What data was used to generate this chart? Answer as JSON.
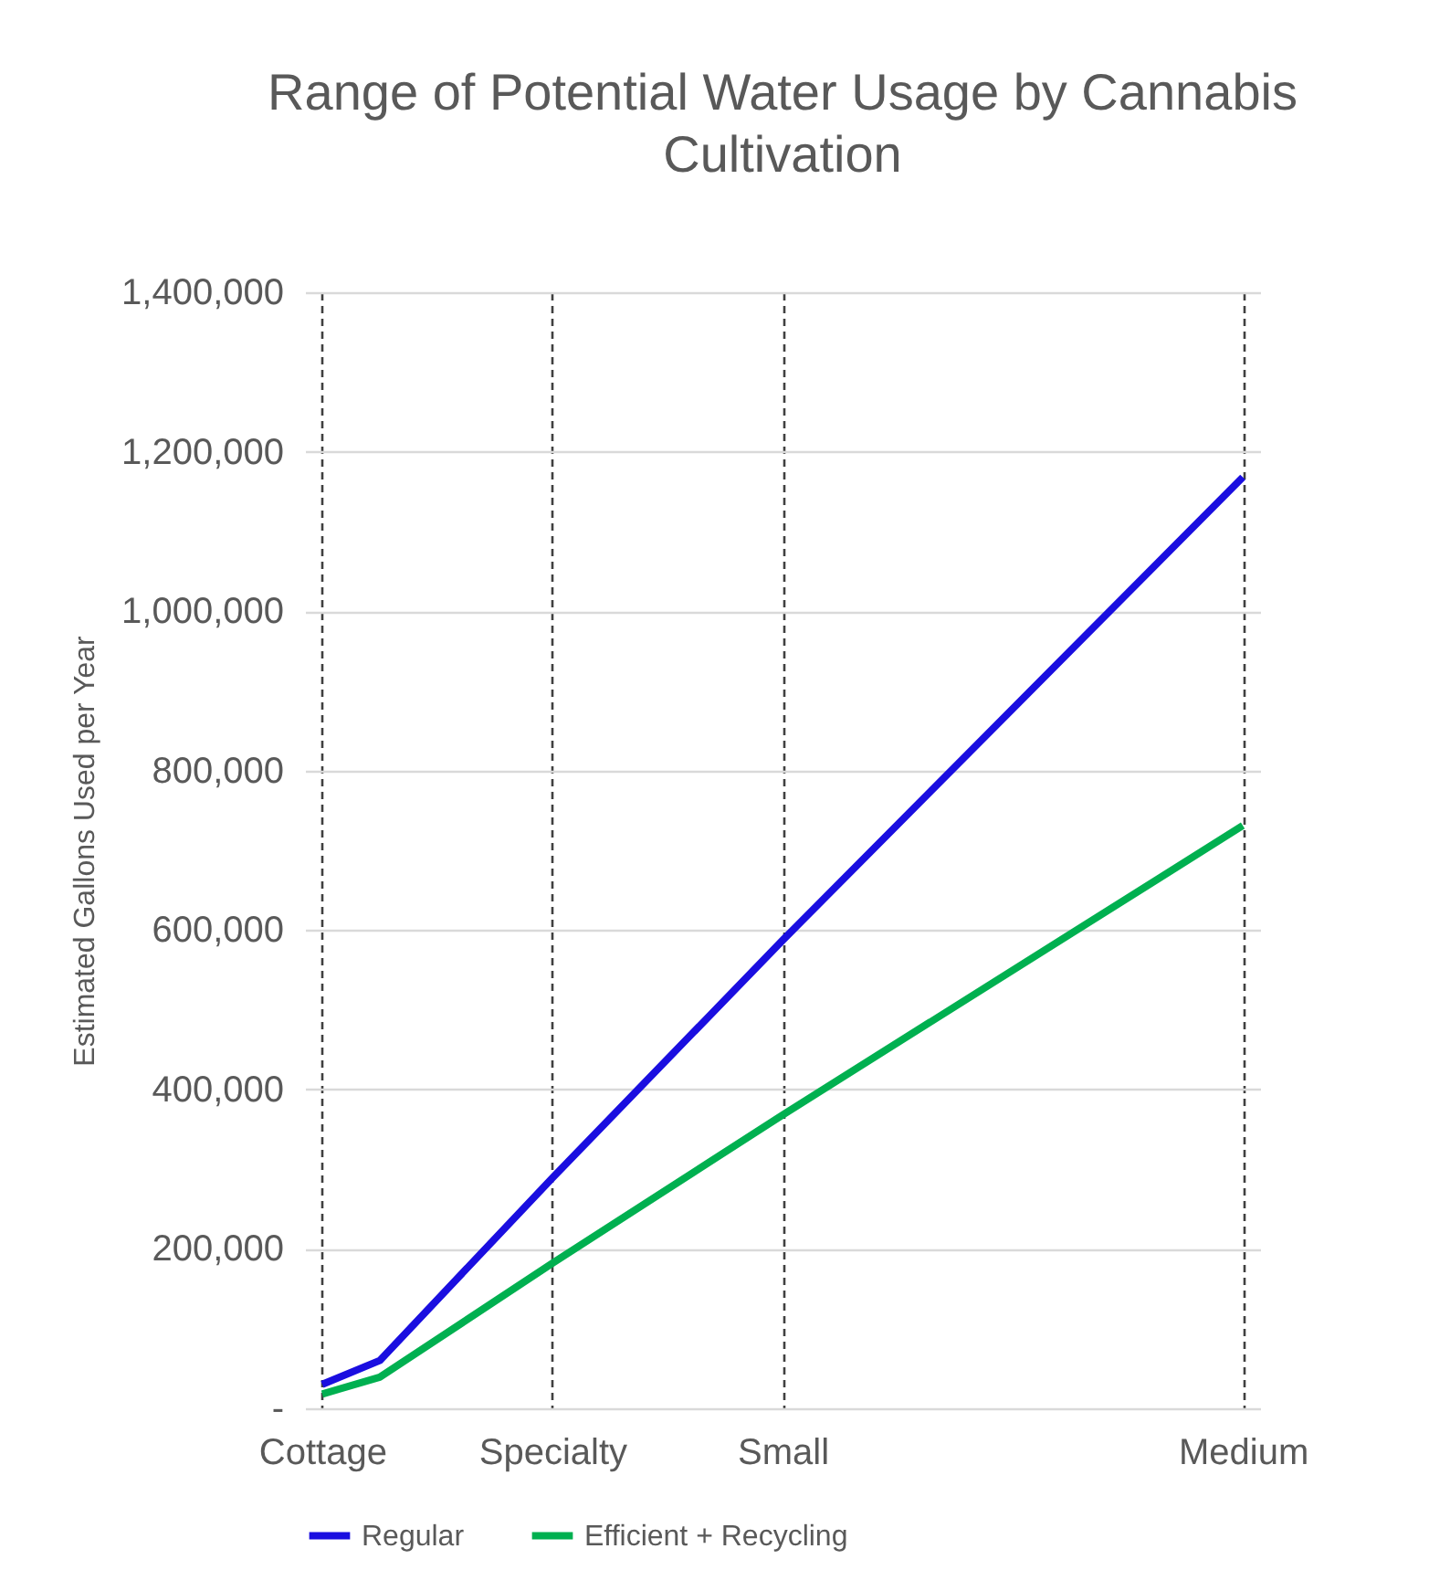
{
  "chart_data": {
    "type": "line",
    "title": "Range of Potential Water Usage by Cannabis Cultivation",
    "ylabel": "Estimated Gallons Used per Year",
    "categories": [
      "Cottage",
      null,
      null,
      null,
      "Specialty",
      null,
      null,
      null,
      "Small",
      null,
      null,
      null,
      null,
      null,
      null,
      null,
      "Medium"
    ],
    "series": [
      {
        "name": "Regular",
        "color": "#1a0ee0",
        "values": [
          30000,
          60000,
          null,
          null,
          289000,
          null,
          null,
          null,
          587000,
          null,
          null,
          null,
          null,
          null,
          null,
          null,
          1168000
        ]
      },
      {
        "name": "Efficient + Recycling",
        "color": "#00b050",
        "values": [
          18000,
          39000,
          null,
          null,
          182000,
          null,
          null,
          null,
          368000,
          null,
          null,
          null,
          null,
          null,
          null,
          null,
          731000
        ]
      }
    ],
    "ylim": [
      0,
      1400000
    ],
    "yticks": [
      {
        "value": 0,
        "label": "-"
      },
      {
        "value": 200000,
        "label": "200,000"
      },
      {
        "value": 400000,
        "label": "400,000"
      },
      {
        "value": 600000,
        "label": "600,000"
      },
      {
        "value": 800000,
        "label": "800,000"
      },
      {
        "value": 1000000,
        "label": "1,000,000"
      },
      {
        "value": 1200000,
        "label": "1,200,000"
      },
      {
        "value": 1400000,
        "label": "1,400,000"
      }
    ],
    "grid": true,
    "legend": "bottom",
    "marker": "none",
    "line_style": "solid"
  }
}
